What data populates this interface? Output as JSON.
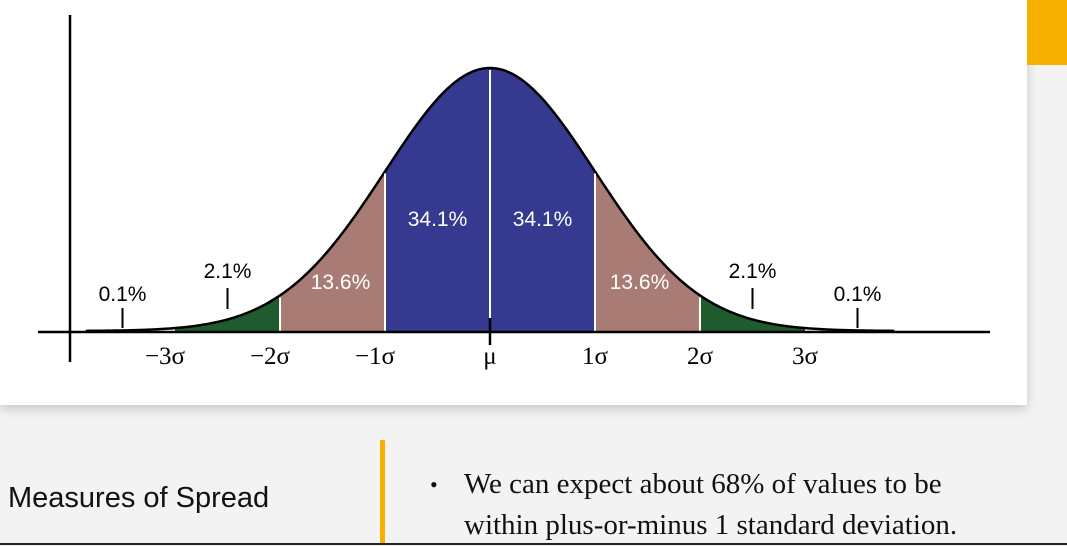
{
  "slide": {
    "title": "Measures of Spread",
    "bullets": [
      {
        "line1": "We can expect about 68% of values to be",
        "line2": "within plus-or-minus 1 standard deviation."
      }
    ],
    "accent_color": "#f6b100"
  },
  "chart_data": {
    "type": "area",
    "distribution": "normal",
    "x_ticks": [
      "−3σ",
      "−2σ",
      "−1σ",
      "μ",
      "1σ",
      "2σ",
      "3σ"
    ],
    "regions": [
      {
        "from": -3,
        "to": -2,
        "label": "2.1%",
        "value": 2.1,
        "color": "#1e5c2e"
      },
      {
        "from": -2,
        "to": -1,
        "label": "13.6%",
        "value": 13.6,
        "color": "#a97b75"
      },
      {
        "from": -1,
        "to": 0,
        "label": "34.1%",
        "value": 34.1,
        "color": "#35398f"
      },
      {
        "from": 0,
        "to": 1,
        "label": "34.1%",
        "value": 34.1,
        "color": "#35398f"
      },
      {
        "from": 1,
        "to": 2,
        "label": "13.6%",
        "value": 13.6,
        "color": "#a97b75"
      },
      {
        "from": 2,
        "to": 3,
        "label": "2.1%",
        "value": 2.1,
        "color": "#1e5c2e"
      }
    ],
    "tails": [
      {
        "side": "left",
        "label": "0.1%",
        "value": 0.1
      },
      {
        "side": "right",
        "label": "0.1%",
        "value": 0.1
      }
    ],
    "xlim": [
      -3.85,
      3.85
    ]
  }
}
